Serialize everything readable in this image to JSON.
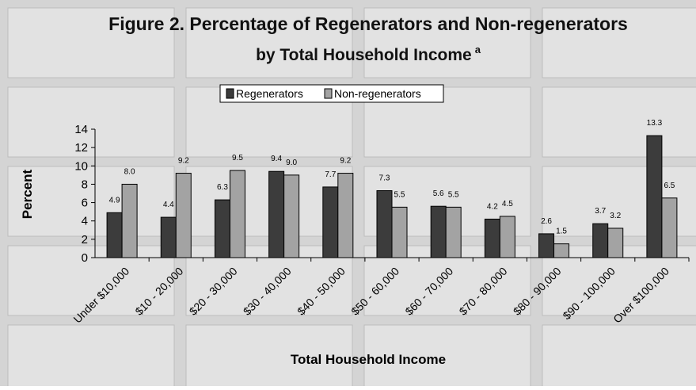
{
  "chart_data": {
    "type": "bar",
    "title": [
      "Figure 2.  Percentage of Regenerators and Non-regenerators",
      "by Total Household Income"
    ],
    "title_superscript": "a",
    "xlabel": "Total Household Income",
    "ylabel": "Percent",
    "categories": [
      "Under $10,000",
      "$10 - 20,000",
      "$20 - 30,000",
      "$30 - 40,000",
      "$40 - 50,000",
      "$50 - 60,000",
      "$60 - 70,000",
      "$70 - 80,000",
      "$80 - 90,000",
      "$90 - 100,000",
      "Over $100,000"
    ],
    "series": [
      {
        "name": "Regenerators",
        "color": "#3c3c3c",
        "values": [
          4.9,
          4.4,
          6.3,
          9.4,
          7.7,
          7.3,
          5.6,
          4.2,
          2.6,
          3.7,
          13.3
        ],
        "value_labels": [
          "4.9",
          "4.4",
          "6.3",
          "9.4",
          "7.7",
          "7.3",
          "5.6",
          "4.2",
          "2.6",
          "3.7",
          "13.3"
        ]
      },
      {
        "name": "Non-regenerators",
        "color": "#a3a3a3",
        "values": [
          8,
          9.2,
          9.5,
          9,
          9.2,
          5.5,
          5.5,
          4.5,
          1.5,
          3.2,
          6.5
        ],
        "value_labels": [
          "8.0",
          "9.2",
          "9.5",
          "9.0",
          "9.2",
          "5.5",
          "5.5",
          "4.5",
          "1.5",
          "3.2",
          "6.5"
        ]
      }
    ],
    "ylim": [
      0,
      14
    ],
    "yticks": [
      0,
      2,
      4,
      6,
      8,
      10,
      12,
      14
    ],
    "legend": "top"
  }
}
